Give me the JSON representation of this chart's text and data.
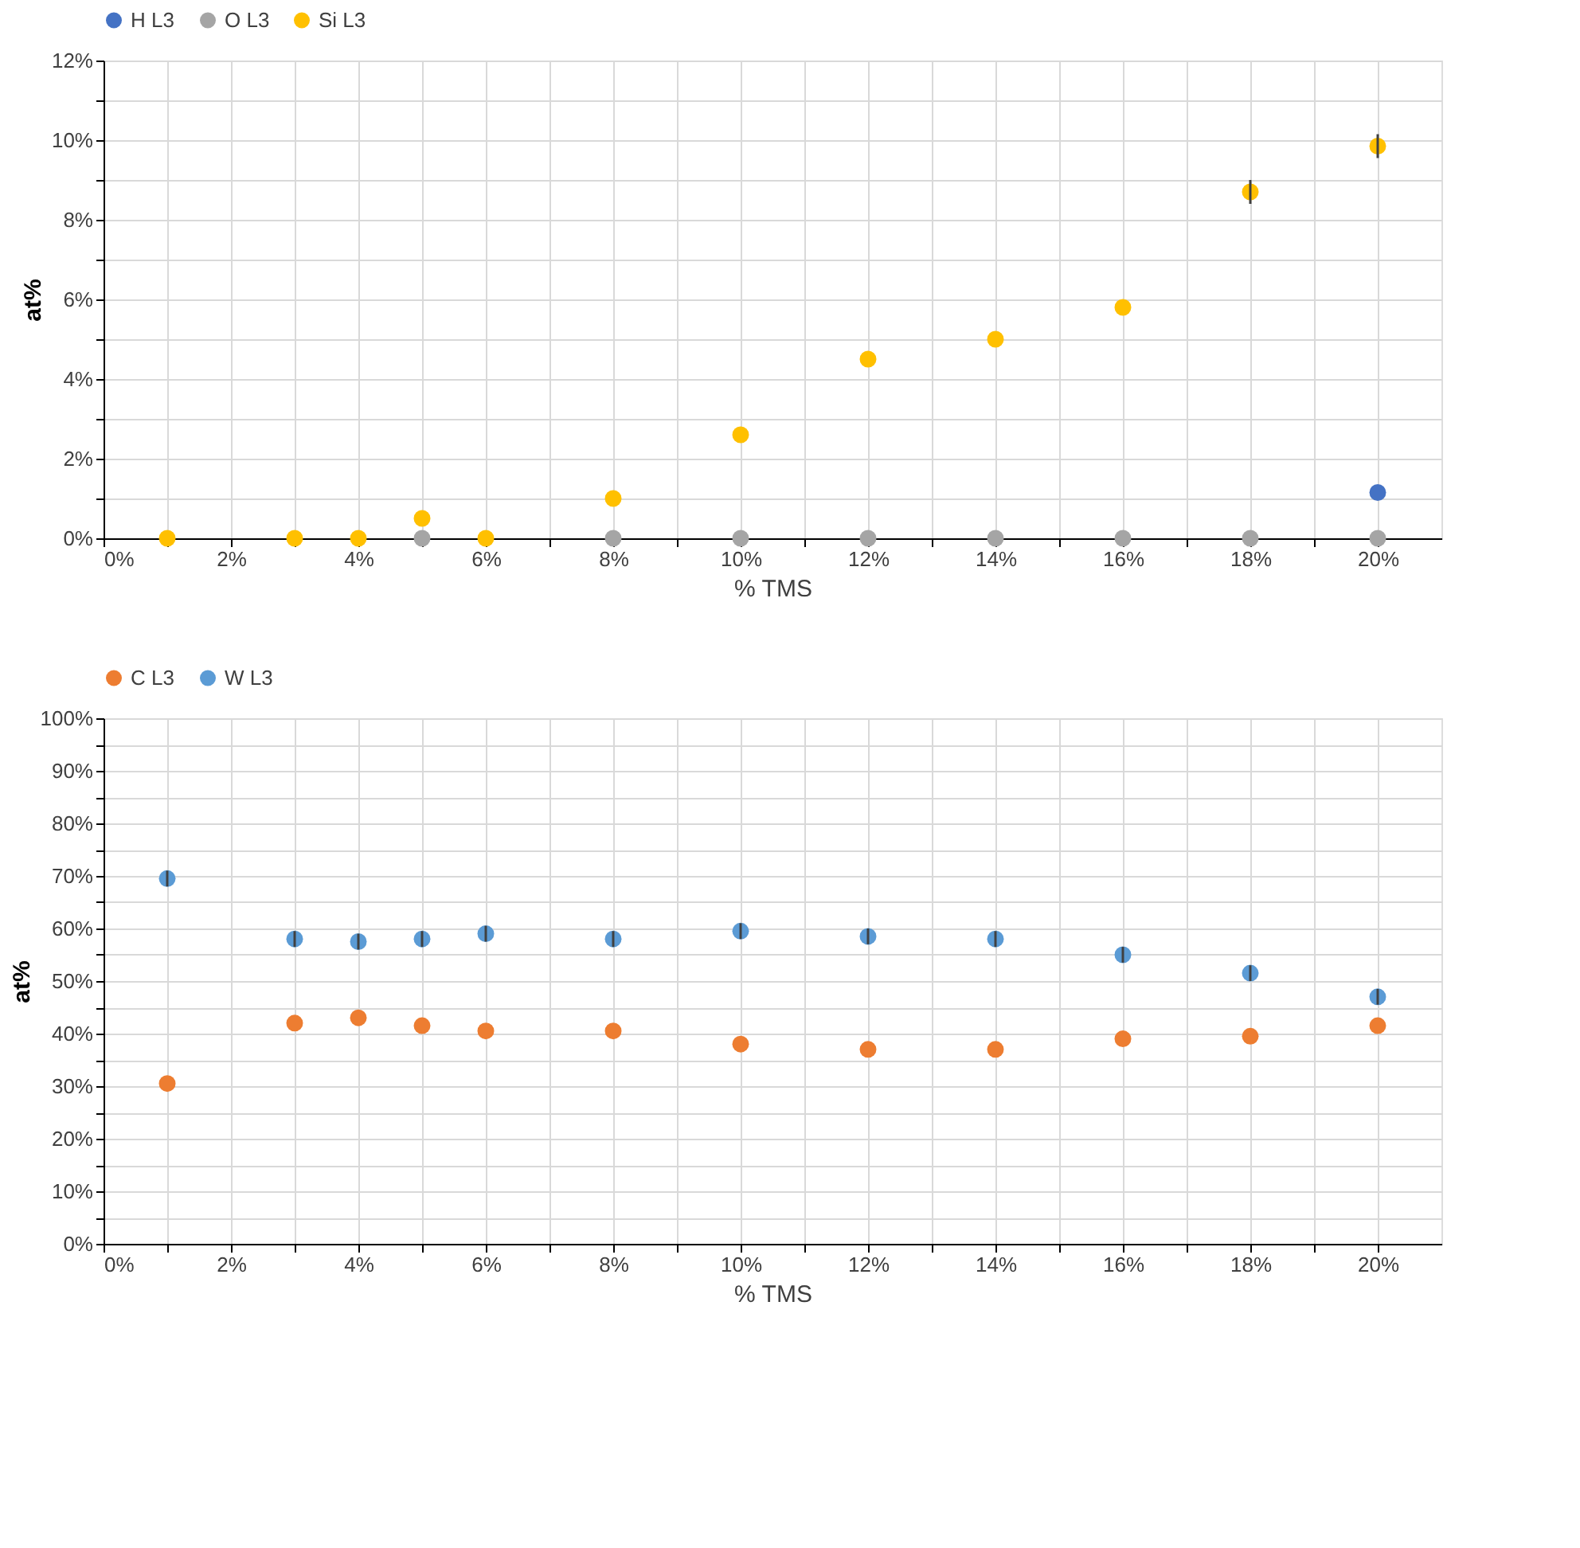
{
  "chart_data": [
    {
      "type": "scatter",
      "xlabel": "% TMS",
      "ylabel": "at%",
      "legend": "top",
      "grid": true,
      "marker": "circle",
      "x": [
        1,
        3,
        4,
        5,
        6,
        8,
        10,
        12,
        14,
        16,
        18,
        20
      ],
      "xlim": [
        0,
        21
      ],
      "xticks": [
        {
          "value": 0,
          "label": "0%"
        },
        {
          "value": 1,
          "label": null
        },
        {
          "value": 2,
          "label": "2%"
        },
        {
          "value": 3,
          "label": null
        },
        {
          "value": 4,
          "label": "4%"
        },
        {
          "value": 5,
          "label": null
        },
        {
          "value": 6,
          "label": "6%"
        },
        {
          "value": 7,
          "label": null
        },
        {
          "value": 8,
          "label": "8%"
        },
        {
          "value": 9,
          "label": null
        },
        {
          "value": 10,
          "label": "10%"
        },
        {
          "value": 11,
          "label": null
        },
        {
          "value": 12,
          "label": "12%"
        },
        {
          "value": 13,
          "label": null
        },
        {
          "value": 14,
          "label": "14%"
        },
        {
          "value": 15,
          "label": null
        },
        {
          "value": 16,
          "label": "16%"
        },
        {
          "value": 17,
          "label": null
        },
        {
          "value": 18,
          "label": "18%"
        },
        {
          "value": 19,
          "label": null
        },
        {
          "value": 20,
          "label": "20%"
        }
      ],
      "ylim": [
        0,
        12
      ],
      "yticks": [
        {
          "value": 0,
          "label": "0%"
        },
        {
          "value": 1,
          "label": null
        },
        {
          "value": 2,
          "label": "2%"
        },
        {
          "value": 3,
          "label": null
        },
        {
          "value": 4,
          "label": "4%"
        },
        {
          "value": 5,
          "label": null
        },
        {
          "value": 6,
          "label": "6%"
        },
        {
          "value": 7,
          "label": null
        },
        {
          "value": 8,
          "label": "8%"
        },
        {
          "value": 9,
          "label": null
        },
        {
          "value": 10,
          "label": "10%"
        },
        {
          "value": 11,
          "label": null
        },
        {
          "value": 12,
          "label": "12%"
        }
      ],
      "series": [
        {
          "name": "H  L3",
          "color": "#4472c4",
          "values": [
            null,
            null,
            null,
            null,
            null,
            null,
            null,
            null,
            null,
            null,
            null,
            1.15
          ]
        },
        {
          "name": "O  L3",
          "color": "#a5a5a5",
          "values": [
            null,
            null,
            null,
            0,
            null,
            0,
            0,
            0,
            0,
            0,
            0,
            0
          ]
        },
        {
          "name": "Si  L3",
          "color": "#ffc000",
          "values": [
            0,
            0,
            0,
            0.5,
            0,
            1.0,
            2.6,
            4.5,
            5.0,
            5.8,
            8.7,
            9.85
          ],
          "errors": [
            null,
            null,
            null,
            null,
            null,
            null,
            null,
            null,
            null,
            null,
            0.3,
            0.3
          ]
        }
      ]
    },
    {
      "type": "scatter",
      "xlabel": "% TMS",
      "ylabel": "at%",
      "legend": "top",
      "grid": true,
      "marker": "circle",
      "x": [
        1,
        3,
        4,
        5,
        6,
        8,
        10,
        12,
        14,
        16,
        18,
        20
      ],
      "xlim": [
        0,
        21
      ],
      "xticks": [
        {
          "value": 0,
          "label": "0%"
        },
        {
          "value": 1,
          "label": null
        },
        {
          "value": 2,
          "label": "2%"
        },
        {
          "value": 3,
          "label": null
        },
        {
          "value": 4,
          "label": "4%"
        },
        {
          "value": 5,
          "label": null
        },
        {
          "value": 6,
          "label": "6%"
        },
        {
          "value": 7,
          "label": null
        },
        {
          "value": 8,
          "label": "8%"
        },
        {
          "value": 9,
          "label": null
        },
        {
          "value": 10,
          "label": "10%"
        },
        {
          "value": 11,
          "label": null
        },
        {
          "value": 12,
          "label": "12%"
        },
        {
          "value": 13,
          "label": null
        },
        {
          "value": 14,
          "label": "14%"
        },
        {
          "value": 15,
          "label": null
        },
        {
          "value": 16,
          "label": "16%"
        },
        {
          "value": 17,
          "label": null
        },
        {
          "value": 18,
          "label": "18%"
        },
        {
          "value": 19,
          "label": null
        },
        {
          "value": 20,
          "label": "20%"
        }
      ],
      "ylim": [
        0,
        100
      ],
      "yticks": [
        {
          "value": 0,
          "label": "0%"
        },
        {
          "value": 5,
          "label": null
        },
        {
          "value": 10,
          "label": "10%"
        },
        {
          "value": 15,
          "label": null
        },
        {
          "value": 20,
          "label": "20%"
        },
        {
          "value": 25,
          "label": null
        },
        {
          "value": 30,
          "label": "30%"
        },
        {
          "value": 35,
          "label": null
        },
        {
          "value": 40,
          "label": "40%"
        },
        {
          "value": 45,
          "label": null
        },
        {
          "value": 50,
          "label": "50%"
        },
        {
          "value": 55,
          "label": null
        },
        {
          "value": 60,
          "label": "60%"
        },
        {
          "value": 65,
          "label": null
        },
        {
          "value": 70,
          "label": "70%"
        },
        {
          "value": 75,
          "label": null
        },
        {
          "value": 80,
          "label": "80%"
        },
        {
          "value": 85,
          "label": null
        },
        {
          "value": 90,
          "label": "90%"
        },
        {
          "value": 95,
          "label": null
        },
        {
          "value": 100,
          "label": "100%"
        }
      ],
      "series": [
        {
          "name": "C  L3",
          "color": "#ed7d31",
          "values": [
            30.5,
            42,
            43,
            41.5,
            40.5,
            40.5,
            38,
            37,
            37,
            39,
            39.5,
            41.5
          ]
        },
        {
          "name": "W  L3",
          "color": "#5b9bd5",
          "values": [
            69.5,
            58,
            57.5,
            58,
            59,
            58,
            59.5,
            58.5,
            58,
            55,
            51.5,
            47
          ],
          "errors": [
            1.5,
            1.5,
            1.5,
            1.5,
            1.5,
            1.5,
            1.5,
            1.5,
            1.5,
            1.5,
            1.5,
            1.5
          ]
        }
      ]
    }
  ]
}
